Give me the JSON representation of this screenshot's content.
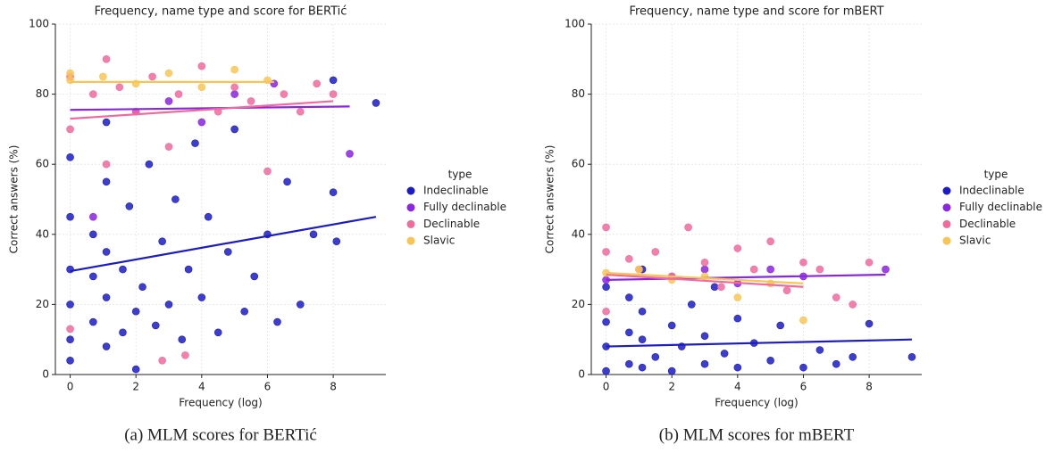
{
  "chart_data": [
    {
      "type": "scatter",
      "title": "Frequency, name type and score for BERTić",
      "xlabel": "Frequency (log)",
      "ylabel": "Correct answers (%)",
      "caption": "(a) MLM scores for BERTić",
      "legend_title": "type",
      "legend": "right",
      "grid": true,
      "xlim": [
        -0.45,
        9.6
      ],
      "ylim": [
        0,
        100
      ],
      "xticks": [
        0,
        2,
        4,
        6,
        8
      ],
      "yticks": [
        0,
        20,
        40,
        60,
        80,
        100
      ],
      "series": [
        {
          "name": "Indeclinable",
          "color": "#1c1cc4",
          "x": [
            0,
            0,
            0,
            0,
            0,
            0,
            0.7,
            0.7,
            0.7,
            1.1,
            1.1,
            1.1,
            1.1,
            1.1,
            1.6,
            1.6,
            1.8,
            2,
            2,
            2.2,
            2.4,
            2.6,
            2.8,
            3,
            3.2,
            3.4,
            3.6,
            3.8,
            4,
            4.2,
            4.5,
            4.8,
            5,
            5.3,
            5.6,
            6,
            6.3,
            6.6,
            7,
            7.4,
            8,
            8.1,
            8,
            9.3
          ],
          "y": [
            4,
            10,
            20,
            30,
            45,
            62,
            15,
            28,
            40,
            8,
            22,
            35,
            55,
            72,
            12,
            30,
            48,
            1.5,
            18,
            25,
            60,
            14,
            38,
            20,
            50,
            10,
            30,
            66,
            22,
            45,
            12,
            35,
            70,
            18,
            28,
            40,
            15,
            55,
            20,
            40,
            52,
            38,
            84,
            77.5
          ],
          "trend": {
            "x": [
              0,
              9.3
            ],
            "y": [
              29.5,
              45
            ]
          }
        },
        {
          "name": "Fully declinable",
          "color": "#8a25e0",
          "x": [
            0.7,
            2,
            3,
            4,
            5,
            6.2,
            8.5
          ],
          "y": [
            45,
            75,
            78,
            72,
            80,
            83,
            63
          ],
          "trend": {
            "x": [
              0,
              8.5
            ],
            "y": [
              75.5,
              76.5
            ]
          }
        },
        {
          "name": "Declinable",
          "color": "#f06a9e",
          "x": [
            0,
            0,
            0,
            0.7,
            1.1,
            1.1,
            1.5,
            2,
            2.5,
            2.8,
            3,
            3.3,
            3.5,
            4,
            4.5,
            5,
            5.5,
            6,
            6.5,
            7,
            7.5,
            8
          ],
          "y": [
            85,
            70,
            13,
            80,
            90,
            60,
            82,
            75,
            85,
            4,
            65,
            80,
            5.5,
            88,
            75,
            82,
            78,
            58,
            80,
            75,
            83,
            80
          ],
          "trend": {
            "x": [
              0,
              8
            ],
            "y": [
              73,
              78
            ]
          }
        },
        {
          "name": "Slavic",
          "color": "#f8c555",
          "x": [
            0,
            0,
            1,
            2,
            3,
            4,
            5,
            6
          ],
          "y": [
            86,
            84,
            85,
            83,
            86,
            82,
            87,
            84
          ],
          "trend": {
            "x": [
              0,
              6.2
            ],
            "y": [
              83.5,
              83.5
            ]
          }
        }
      ]
    },
    {
      "type": "scatter",
      "title": "Frequency, name type and score for mBERT",
      "xlabel": "Frequency (log)",
      "ylabel": "Correct answers (%)",
      "caption": "(b) MLM scores for mBERT",
      "legend_title": "type",
      "legend": "right",
      "grid": true,
      "xlim": [
        -0.45,
        9.6
      ],
      "ylim": [
        0,
        100
      ],
      "xticks": [
        0,
        2,
        4,
        6,
        8
      ],
      "yticks": [
        0,
        20,
        40,
        60,
        80,
        100
      ],
      "series": [
        {
          "name": "Indeclinable",
          "color": "#1c1cc4",
          "x": [
            0,
            0,
            0,
            0,
            0.7,
            0.7,
            0.7,
            1.1,
            1.1,
            1.1,
            1.1,
            1.5,
            2,
            2,
            2.3,
            2.6,
            3,
            3,
            3.3,
            3.6,
            4,
            4,
            4.5,
            5,
            5.3,
            6,
            6.5,
            7,
            7.5,
            8,
            9.3
          ],
          "y": [
            1,
            8,
            15,
            25,
            3,
            12,
            22,
            2,
            10,
            18,
            30,
            5,
            1,
            14,
            8,
            20,
            3,
            11,
            25,
            6,
            2,
            16,
            9,
            4,
            14,
            2,
            7,
            3,
            5,
            14.5,
            5
          ],
          "trend": {
            "x": [
              0,
              9.3
            ],
            "y": [
              8,
              10
            ]
          }
        },
        {
          "name": "Fully declinable",
          "color": "#8a25e0",
          "x": [
            0,
            2,
            3,
            4,
            5,
            6,
            8.5
          ],
          "y": [
            27,
            28,
            30,
            26,
            30,
            28,
            30
          ],
          "trend": {
            "x": [
              0,
              8.5
            ],
            "y": [
              27,
              28.5
            ]
          }
        },
        {
          "name": "Declinable",
          "color": "#f06a9e",
          "x": [
            0,
            0,
            0,
            0.7,
            1,
            1.5,
            2,
            2.5,
            3,
            3.5,
            4,
            4.5,
            5,
            5.5,
            6,
            6.5,
            7,
            7.5,
            8
          ],
          "y": [
            42,
            35,
            18,
            33,
            30,
            35,
            28,
            42,
            32,
            25,
            36,
            30,
            38,
            24,
            32,
            30,
            22,
            20,
            32
          ],
          "trend": {
            "x": [
              0,
              6
            ],
            "y": [
              28.5,
              25
            ]
          }
        },
        {
          "name": "Slavic",
          "color": "#f8c555",
          "x": [
            0,
            1,
            2,
            3,
            4,
            5,
            6
          ],
          "y": [
            29,
            30,
            27,
            28,
            22,
            26,
            15.5
          ],
          "trend": {
            "x": [
              0,
              6
            ],
            "y": [
              29,
              26
            ]
          }
        }
      ]
    }
  ]
}
